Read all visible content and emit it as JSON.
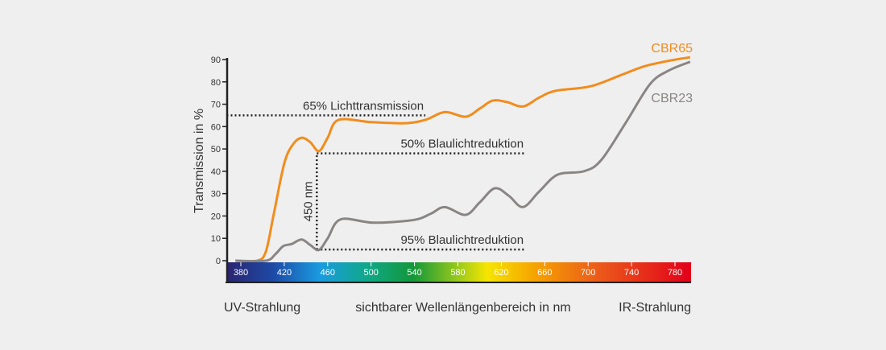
{
  "chart_data": {
    "type": "line",
    "title": "",
    "ylabel": "Transmission in %",
    "xlabel": "sichtbarer Wellenlängenbereich in nm",
    "xlim": [
      367,
      795
    ],
    "ylim": [
      0,
      90
    ],
    "yticks": [
      0,
      10,
      20,
      30,
      40,
      50,
      60,
      70,
      80,
      90
    ],
    "xticks": [
      380,
      420,
      460,
      500,
      540,
      580,
      620,
      660,
      700,
      740,
      780
    ],
    "grid": false,
    "legend": "inline-right",
    "region_labels": {
      "left": "UV-Strahlung",
      "right": "IR-Strahlung"
    },
    "series": [
      {
        "name": "CBR65",
        "color": "#f28c1c",
        "x": [
          395,
          403,
          410,
          420,
          428,
          436,
          444,
          452,
          460,
          470,
          500,
          531,
          550,
          568,
          587,
          600,
          612,
          625,
          640,
          655,
          670,
          702,
          730,
          752,
          775,
          794
        ],
        "y": [
          0,
          4,
          20,
          43.5,
          52,
          55,
          53,
          49,
          55,
          63,
          62,
          61.5,
          63,
          66.5,
          64.4,
          68,
          71.6,
          71,
          69,
          73,
          76,
          78,
          83,
          87,
          89.5,
          91
        ]
      },
      {
        "name": "CBR23",
        "color": "#8a8585",
        "x": [
          403,
          412,
          419,
          427,
          436,
          444,
          452,
          460,
          472,
          502,
          539,
          555,
          568,
          587,
          600,
          614,
          627,
          640,
          655,
          672,
          696,
          712,
          735,
          757,
          774,
          794
        ],
        "y": [
          0,
          3,
          6.5,
          7.5,
          9.5,
          7,
          4.8,
          10,
          18.5,
          17,
          18.2,
          21,
          24,
          20.5,
          26,
          32.4,
          29,
          24,
          31,
          38.5,
          40,
          45,
          62,
          79,
          85,
          89
        ]
      }
    ],
    "annotations": [
      {
        "text": "65% Lichttransmission",
        "y": 65,
        "x_from": 367,
        "x_to": 550
      },
      {
        "text": "50% Blaulichtreduktion",
        "y": 48,
        "x_from": 450,
        "x_to": 642
      },
      {
        "text": "95% Blaulichtreduktion",
        "y": 5,
        "x_from": 450,
        "x_to": 642
      },
      {
        "text": "450 nm",
        "x": 450,
        "y_from": 5,
        "y_to": 48
      }
    ]
  }
}
